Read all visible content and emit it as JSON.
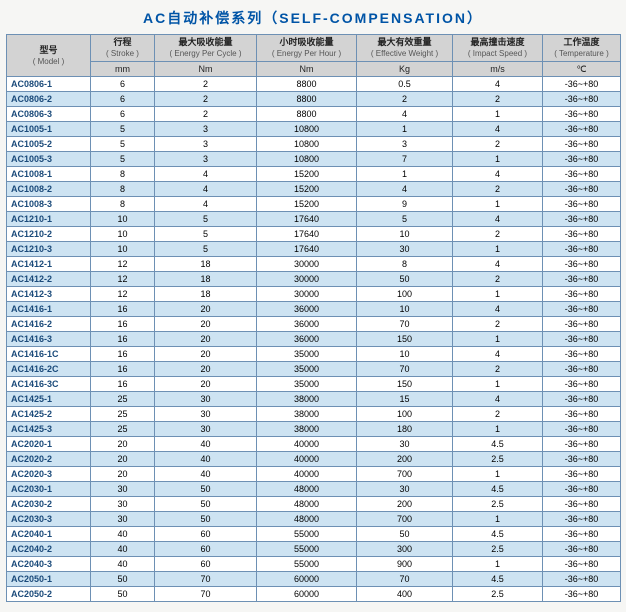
{
  "title": "AC自动补偿系列（SELF-COMPENSATION）",
  "columns": [
    {
      "main": "型号",
      "sub": "( Model )",
      "unit": ""
    },
    {
      "main": "行程",
      "sub": "( Stroke )",
      "unit": "mm"
    },
    {
      "main": "最大吸收能量",
      "sub": "( Energy Per Cycle )",
      "unit": "Nm"
    },
    {
      "main": "小时吸收能量",
      "sub": "( Energy Per Hour )",
      "unit": "Nm"
    },
    {
      "main": "最大有效重量",
      "sub": "( Effective Weight )",
      "unit": "Kg"
    },
    {
      "main": "最高撞击速度",
      "sub": "( Impact Speed )",
      "unit": "m/s"
    },
    {
      "main": "工作温度",
      "sub": "( Temperature )",
      "unit": "℃"
    }
  ],
  "rows": [
    [
      "AC0806-1",
      "6",
      "2",
      "8800",
      "0.5",
      "4",
      "-36~+80"
    ],
    [
      "AC0806-2",
      "6",
      "2",
      "8800",
      "2",
      "2",
      "-36~+80"
    ],
    [
      "AC0806-3",
      "6",
      "2",
      "8800",
      "4",
      "1",
      "-36~+80"
    ],
    [
      "AC1005-1",
      "5",
      "3",
      "10800",
      "1",
      "4",
      "-36~+80"
    ],
    [
      "AC1005-2",
      "5",
      "3",
      "10800",
      "3",
      "2",
      "-36~+80"
    ],
    [
      "AC1005-3",
      "5",
      "3",
      "10800",
      "7",
      "1",
      "-36~+80"
    ],
    [
      "AC1008-1",
      "8",
      "4",
      "15200",
      "1",
      "4",
      "-36~+80"
    ],
    [
      "AC1008-2",
      "8",
      "4",
      "15200",
      "4",
      "2",
      "-36~+80"
    ],
    [
      "AC1008-3",
      "8",
      "4",
      "15200",
      "9",
      "1",
      "-36~+80"
    ],
    [
      "AC1210-1",
      "10",
      "5",
      "17640",
      "5",
      "4",
      "-36~+80"
    ],
    [
      "AC1210-2",
      "10",
      "5",
      "17640",
      "10",
      "2",
      "-36~+80"
    ],
    [
      "AC1210-3",
      "10",
      "5",
      "17640",
      "30",
      "1",
      "-36~+80"
    ],
    [
      "AC1412-1",
      "12",
      "18",
      "30000",
      "8",
      "4",
      "-36~+80"
    ],
    [
      "AC1412-2",
      "12",
      "18",
      "30000",
      "50",
      "2",
      "-36~+80"
    ],
    [
      "AC1412-3",
      "12",
      "18",
      "30000",
      "100",
      "1",
      "-36~+80"
    ],
    [
      "AC1416-1",
      "16",
      "20",
      "36000",
      "10",
      "4",
      "-36~+80"
    ],
    [
      "AC1416-2",
      "16",
      "20",
      "36000",
      "70",
      "2",
      "-36~+80"
    ],
    [
      "AC1416-3",
      "16",
      "20",
      "36000",
      "150",
      "1",
      "-36~+80"
    ],
    [
      "AC1416-1C",
      "16",
      "20",
      "35000",
      "10",
      "4",
      "-36~+80"
    ],
    [
      "AC1416-2C",
      "16",
      "20",
      "35000",
      "70",
      "2",
      "-36~+80"
    ],
    [
      "AC1416-3C",
      "16",
      "20",
      "35000",
      "150",
      "1",
      "-36~+80"
    ],
    [
      "AC1425-1",
      "25",
      "30",
      "38000",
      "15",
      "4",
      "-36~+80"
    ],
    [
      "AC1425-2",
      "25",
      "30",
      "38000",
      "100",
      "2",
      "-36~+80"
    ],
    [
      "AC1425-3",
      "25",
      "30",
      "38000",
      "180",
      "1",
      "-36~+80"
    ],
    [
      "AC2020-1",
      "20",
      "40",
      "40000",
      "30",
      "4.5",
      "-36~+80"
    ],
    [
      "AC2020-2",
      "20",
      "40",
      "40000",
      "200",
      "2.5",
      "-36~+80"
    ],
    [
      "AC2020-3",
      "20",
      "40",
      "40000",
      "700",
      "1",
      "-36~+80"
    ],
    [
      "AC2030-1",
      "30",
      "50",
      "48000",
      "30",
      "4.5",
      "-36~+80"
    ],
    [
      "AC2030-2",
      "30",
      "50",
      "48000",
      "200",
      "2.5",
      "-36~+80"
    ],
    [
      "AC2030-3",
      "30",
      "50",
      "48000",
      "700",
      "1",
      "-36~+80"
    ],
    [
      "AC2040-1",
      "40",
      "60",
      "55000",
      "50",
      "4.5",
      "-36~+80"
    ],
    [
      "AC2040-2",
      "40",
      "60",
      "55000",
      "300",
      "2.5",
      "-36~+80"
    ],
    [
      "AC2040-3",
      "40",
      "60",
      "55000",
      "900",
      "1",
      "-36~+80"
    ],
    [
      "AC2050-1",
      "50",
      "70",
      "60000",
      "70",
      "4.5",
      "-36~+80"
    ],
    [
      "AC2050-2",
      "50",
      "70",
      "60000",
      "400",
      "2.5",
      "-36~+80"
    ]
  ]
}
